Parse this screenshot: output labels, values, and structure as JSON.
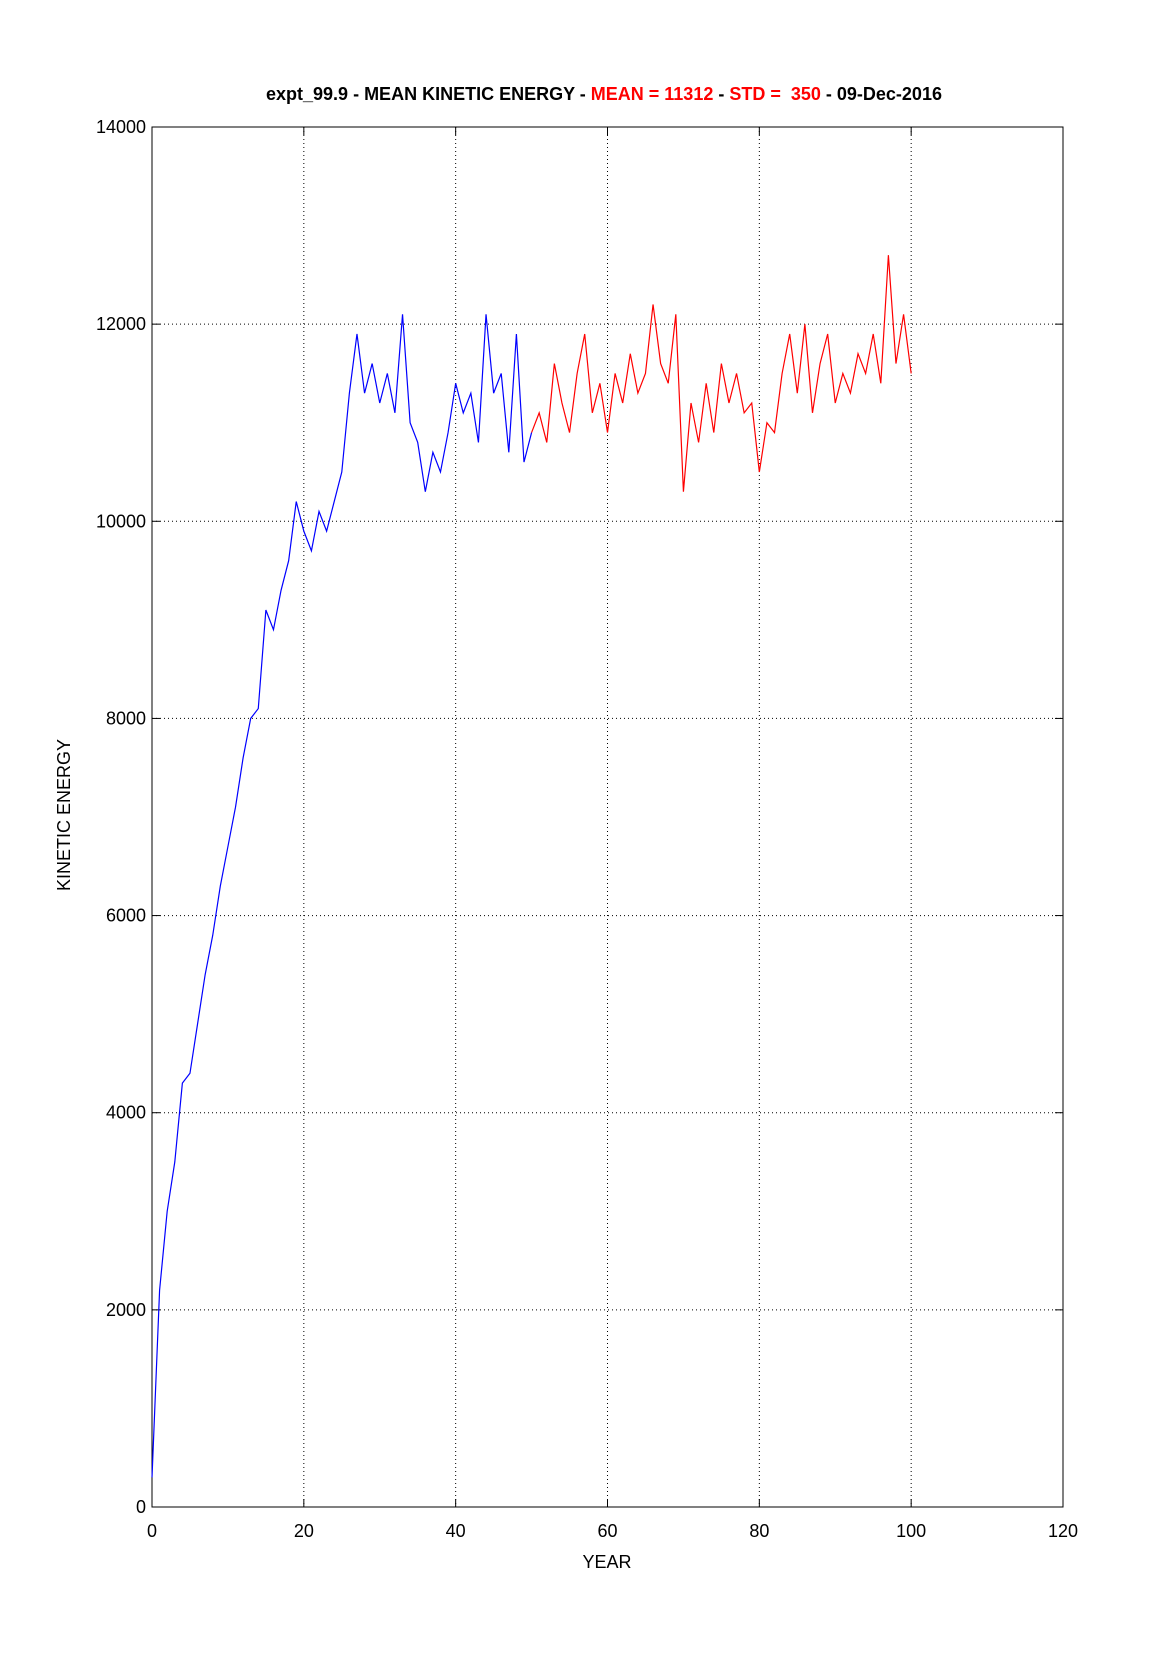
{
  "chart_data": {
    "type": "line",
    "title_parts": [
      {
        "text": "expt_99.9 - MEAN KINETIC ENERGY - ",
        "color": "#000000"
      },
      {
        "text": "MEAN = 11312",
        "color": "#ff0000"
      },
      {
        "text": " - ",
        "color": "#000000"
      },
      {
        "text": "STD =  350",
        "color": "#ff0000"
      },
      {
        "text": " - 09-Dec-2016",
        "color": "#000000"
      }
    ],
    "xlabel": "YEAR",
    "ylabel": "KINETIC ENERGY",
    "xlim": [
      0,
      120
    ],
    "xticks": [
      0,
      20,
      40,
      60,
      80,
      100,
      120
    ],
    "ylim": [
      0,
      14000
    ],
    "yticks": [
      0,
      2000,
      4000,
      6000,
      8000,
      10000,
      12000,
      14000
    ],
    "grid": true,
    "series": [
      {
        "color": "#0000ff",
        "x": [
          0,
          1,
          2,
          3,
          4,
          5,
          6,
          7,
          8,
          9,
          10,
          11,
          12,
          13,
          14,
          15,
          16,
          17,
          18,
          19,
          20,
          21,
          22,
          23,
          24,
          25,
          26,
          27,
          28,
          29,
          30,
          31,
          32,
          33,
          34,
          35,
          36,
          37,
          38,
          39,
          40,
          41,
          42,
          43,
          44,
          45,
          46,
          47,
          48,
          49,
          50
        ],
        "values": [
          300,
          2200,
          3000,
          3500,
          4300,
          4400,
          4900,
          5400,
          5800,
          6300,
          6700,
          7100,
          7600,
          8000,
          8100,
          9100,
          8900,
          9300,
          9600,
          10200,
          9900,
          9700,
          10100,
          9900,
          10200,
          10500,
          11300,
          11900,
          11300,
          11600,
          11200,
          11500,
          11100,
          12100,
          11000,
          10800,
          10300,
          10700,
          10500,
          10900,
          11400,
          11100,
          11300,
          10800,
          12100,
          11300,
          11500,
          10700,
          11900,
          10600,
          10900
        ]
      },
      {
        "color": "#ff0000",
        "x": [
          50,
          51,
          52,
          53,
          54,
          55,
          56,
          57,
          58,
          59,
          60,
          61,
          62,
          63,
          64,
          65,
          66,
          67,
          68,
          69,
          70,
          71,
          72,
          73,
          74,
          75,
          76,
          77,
          78,
          79,
          80,
          81,
          82,
          83,
          84,
          85,
          86,
          87,
          88,
          89,
          90,
          91,
          92,
          93,
          94,
          95,
          96,
          97,
          98,
          99,
          100
        ],
        "values": [
          10900,
          11100,
          10800,
          11600,
          11200,
          10900,
          11500,
          11900,
          11100,
          11400,
          10900,
          11500,
          11200,
          11700,
          11300,
          11500,
          12200,
          11600,
          11400,
          12100,
          10300,
          11200,
          10800,
          11400,
          10900,
          11600,
          11200,
          11500,
          11100,
          11200,
          10500,
          11000,
          10900,
          11500,
          11900,
          11300,
          12000,
          11100,
          11600,
          11900,
          11200,
          11500,
          11300,
          11700,
          11500,
          11900,
          11400,
          12700,
          11600,
          12100,
          11500
        ]
      }
    ]
  }
}
